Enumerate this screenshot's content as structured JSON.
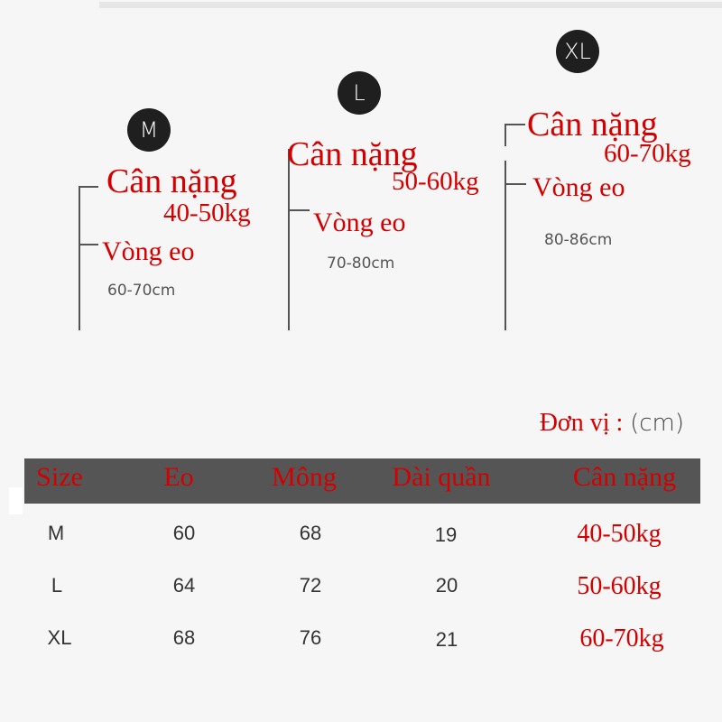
{
  "sizes": [
    {
      "badge": "M",
      "weight_label": "Cân nặng",
      "weight": "40-50kg",
      "waist_label": "Vòng eo",
      "waist": "60-70cm"
    },
    {
      "badge": "L",
      "weight_label": "Cân nặng",
      "weight": "50-60kg",
      "waist_label": "Vòng eo",
      "waist": "70-80cm"
    },
    {
      "badge": "XL",
      "weight_label": "Cân nặng",
      "weight": "60-70kg",
      "waist_label": "Vòng eo",
      "waist": "80-86cm"
    }
  ],
  "unit": {
    "label": "Đơn vị :",
    "value": "(cm)"
  },
  "table": {
    "headers": [
      "Size",
      "Eo",
      "Mông",
      "Dài quần",
      "Cân nặng"
    ],
    "rows": [
      [
        "M",
        "60",
        "68",
        "19",
        "40-50kg"
      ],
      [
        "L",
        "64",
        "72",
        "20",
        "50-60kg"
      ],
      [
        "XL",
        "68",
        "76",
        "21",
        "60-70kg"
      ]
    ]
  },
  "colors": {
    "accent": "#d40000",
    "header_bg": "#555555",
    "badge_bg": "#1f1f1f"
  }
}
